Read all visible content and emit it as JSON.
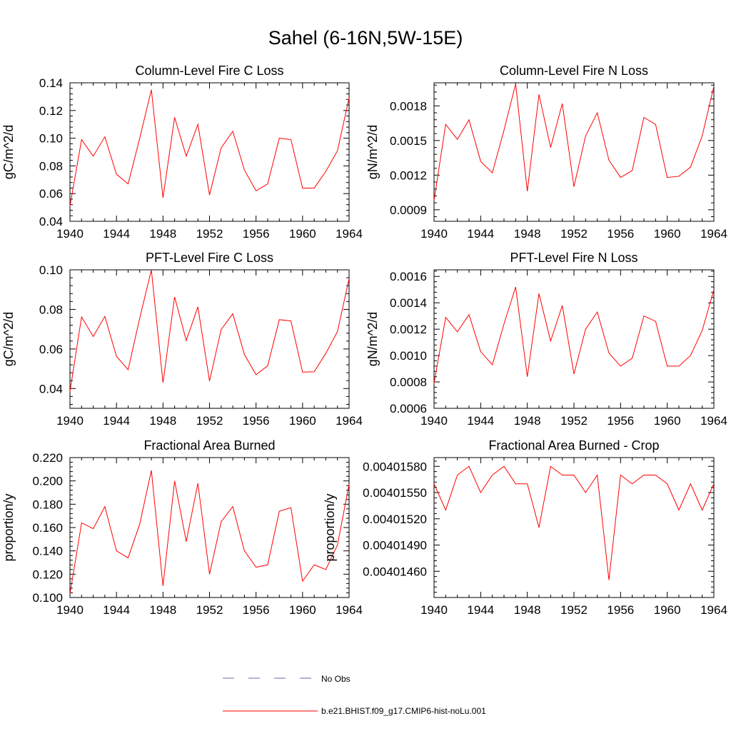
{
  "figure": {
    "title": "Sahel (6-16N,5W-15E)",
    "line_color": "#ff0000",
    "obs_color": "#6a6aa8"
  },
  "legend": {
    "obs_label": "No Obs",
    "model_label": "b.e21.BHIST.f09_g17.CMIP6-hist-noLu.001"
  },
  "chart_data": [
    {
      "type": "line",
      "title": "Column-Level Fire C Loss",
      "ylabel": "gC/m^2/d",
      "xlim": [
        1940,
        1964
      ],
      "xticks": [
        1940,
        1944,
        1948,
        1952,
        1956,
        1960,
        1964
      ],
      "ylim": [
        0.04,
        0.14
      ],
      "yticks": [
        0.04,
        0.06,
        0.08,
        0.1,
        0.12,
        0.14
      ],
      "ytick_labels": [
        "0.04",
        "0.06",
        "0.08",
        "0.10",
        "0.12",
        "0.14"
      ],
      "x": [
        1940,
        1941,
        1942,
        1943,
        1944,
        1945,
        1946,
        1947,
        1948,
        1949,
        1950,
        1951,
        1952,
        1953,
        1954,
        1955,
        1956,
        1957,
        1958,
        1959,
        1960,
        1961,
        1962,
        1963,
        1964
      ],
      "series": [
        {
          "values": [
            0.051,
            0.099,
            0.087,
            0.101,
            0.074,
            0.067,
            0.1,
            0.135,
            0.057,
            0.115,
            0.087,
            0.11,
            0.059,
            0.093,
            0.105,
            0.077,
            0.062,
            0.067,
            0.1,
            0.099,
            0.064,
            0.064,
            0.076,
            0.091,
            0.129
          ]
        }
      ]
    },
    {
      "type": "line",
      "title": "Column-Level Fire N Loss",
      "ylabel": "gN/m^2/d",
      "xlim": [
        1940,
        1964
      ],
      "xticks": [
        1940,
        1944,
        1948,
        1952,
        1956,
        1960,
        1964
      ],
      "ylim": [
        0.0008,
        0.002
      ],
      "yticks": [
        0.0009,
        0.0012,
        0.0015,
        0.0018
      ],
      "ytick_labels": [
        "0.0009",
        "0.0012",
        "0.0015",
        "0.0018"
      ],
      "x": [
        1940,
        1941,
        1942,
        1943,
        1944,
        1945,
        1946,
        1947,
        1948,
        1949,
        1950,
        1951,
        1952,
        1953,
        1954,
        1955,
        1956,
        1957,
        1958,
        1959,
        1960,
        1961,
        1962,
        1963,
        1964
      ],
      "series": [
        {
          "values": [
            0.00098,
            0.00164,
            0.00151,
            0.00168,
            0.00132,
            0.00122,
            0.00159,
            0.00199,
            0.00106,
            0.0019,
            0.00144,
            0.00182,
            0.0011,
            0.00154,
            0.00174,
            0.00133,
            0.00118,
            0.00124,
            0.0017,
            0.00164,
            0.00118,
            0.00119,
            0.00127,
            0.00154,
            0.00197
          ]
        }
      ]
    },
    {
      "type": "line",
      "title": "PFT-Level Fire C Loss",
      "ylabel": "gC/m^2/d",
      "xlim": [
        1940,
        1964
      ],
      "xticks": [
        1940,
        1944,
        1948,
        1952,
        1956,
        1960,
        1964
      ],
      "ylim": [
        0.03,
        0.1
      ],
      "yticks": [
        0.04,
        0.06,
        0.08,
        0.1
      ],
      "ytick_labels": [
        "0.04",
        "0.06",
        "0.08",
        "0.10"
      ],
      "x": [
        1940,
        1941,
        1942,
        1943,
        1944,
        1945,
        1946,
        1947,
        1948,
        1949,
        1950,
        1951,
        1952,
        1953,
        1954,
        1955,
        1956,
        1957,
        1958,
        1959,
        1960,
        1961,
        1962,
        1963,
        1964
      ],
      "series": [
        {
          "values": [
            0.0385,
            0.0762,
            0.0663,
            0.0765,
            0.0563,
            0.0495,
            0.0756,
            0.1,
            0.043,
            0.0863,
            0.0643,
            0.0813,
            0.0438,
            0.0698,
            0.0778,
            0.0572,
            0.047,
            0.0515,
            0.0748,
            0.0742,
            0.0483,
            0.0485,
            0.0578,
            0.0688,
            0.0955
          ]
        }
      ]
    },
    {
      "type": "line",
      "title": "PFT-Level Fire N Loss",
      "ylabel": "gN/m^2/d",
      "xlim": [
        1940,
        1964
      ],
      "xticks": [
        1940,
        1944,
        1948,
        1952,
        1956,
        1960,
        1964
      ],
      "ylim": [
        0.0006,
        0.00165
      ],
      "yticks": [
        0.0006,
        0.0008,
        0.001,
        0.0012,
        0.0014,
        0.0016
      ],
      "ytick_labels": [
        "0.0006",
        "0.0008",
        "0.0010",
        "0.0012",
        "0.0014",
        "0.0016"
      ],
      "x": [
        1940,
        1941,
        1942,
        1943,
        1944,
        1945,
        1946,
        1947,
        1948,
        1949,
        1950,
        1951,
        1952,
        1953,
        1954,
        1955,
        1956,
        1957,
        1958,
        1959,
        1960,
        1961,
        1962,
        1963,
        1964
      ],
      "series": [
        {
          "values": [
            0.00079,
            0.00129,
            0.00118,
            0.00131,
            0.00103,
            0.00093,
            0.00124,
            0.00152,
            0.00084,
            0.00147,
            0.00111,
            0.00138,
            0.00086,
            0.0012,
            0.00133,
            0.00102,
            0.00092,
            0.00098,
            0.0013,
            0.00126,
            0.00092,
            0.00092,
            0.001,
            0.00119,
            0.0015
          ]
        }
      ]
    },
    {
      "type": "line",
      "title": "Fractional Area Burned",
      "ylabel": "proportion/y",
      "xlim": [
        1940,
        1964
      ],
      "xticks": [
        1940,
        1944,
        1948,
        1952,
        1956,
        1960,
        1964
      ],
      "ylim": [
        0.1,
        0.22
      ],
      "yticks": [
        0.1,
        0.12,
        0.14,
        0.16,
        0.18,
        0.2,
        0.22
      ],
      "ytick_labels": [
        "0.100",
        "0.120",
        "0.140",
        "0.160",
        "0.180",
        "0.200",
        "0.220"
      ],
      "x": [
        1940,
        1941,
        1942,
        1943,
        1944,
        1945,
        1946,
        1947,
        1948,
        1949,
        1950,
        1951,
        1952,
        1953,
        1954,
        1955,
        1956,
        1957,
        1958,
        1959,
        1960,
        1961,
        1962,
        1963,
        1964
      ],
      "series": [
        {
          "values": [
            0.103,
            0.164,
            0.159,
            0.178,
            0.14,
            0.134,
            0.163,
            0.209,
            0.11,
            0.2,
            0.148,
            0.198,
            0.12,
            0.165,
            0.178,
            0.14,
            0.126,
            0.128,
            0.174,
            0.177,
            0.114,
            0.128,
            0.124,
            0.145,
            0.197
          ]
        }
      ]
    },
    {
      "type": "line",
      "title": "Fractional Area Burned - Crop",
      "ylabel": "proportion/y",
      "xlim": [
        1940,
        1964
      ],
      "xticks": [
        1940,
        1944,
        1948,
        1952,
        1956,
        1960,
        1964
      ],
      "ylim": [
        0.0040143,
        0.0040159
      ],
      "yticks": [
        0.0040146,
        0.0040149,
        0.0040152,
        0.0040155,
        0.0040158
      ],
      "ytick_labels": [
        "0.00401460",
        "0.00401490",
        "0.00401520",
        "0.00401550",
        "0.00401580"
      ],
      "x": [
        1940,
        1941,
        1942,
        1943,
        1944,
        1945,
        1946,
        1947,
        1948,
        1949,
        1950,
        1951,
        1952,
        1953,
        1954,
        1955,
        1956,
        1957,
        1958,
        1959,
        1960,
        1961,
        1962,
        1963,
        1964
      ],
      "series": [
        {
          "values": [
            0.0040156,
            0.0040153,
            0.0040157,
            0.0040158,
            0.0040155,
            0.0040157,
            0.0040158,
            0.0040156,
            0.0040156,
            0.0040151,
            0.0040158,
            0.0040157,
            0.0040157,
            0.0040155,
            0.0040157,
            0.0040145,
            0.0040157,
            0.0040156,
            0.0040157,
            0.0040157,
            0.0040156,
            0.0040153,
            0.0040156,
            0.0040153,
            0.0040156
          ]
        }
      ]
    }
  ]
}
